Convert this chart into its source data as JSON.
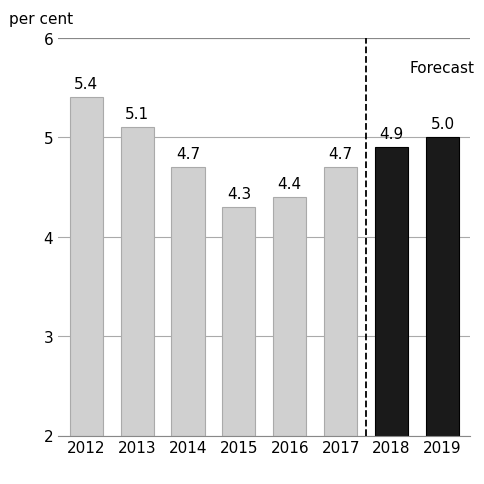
{
  "years": [
    "2012",
    "2013",
    "2014",
    "2015",
    "2016",
    "2017",
    "2018",
    "2019"
  ],
  "values": [
    5.4,
    5.1,
    4.7,
    4.3,
    4.4,
    4.7,
    4.9,
    5.0
  ],
  "bar_colors": [
    "#d0d0d0",
    "#d0d0d0",
    "#d0d0d0",
    "#d0d0d0",
    "#d0d0d0",
    "#d0d0d0",
    "#1a1a1a",
    "#1a1a1a"
  ],
  "bar_edgecolors": [
    "#aaaaaa",
    "#aaaaaa",
    "#aaaaaa",
    "#aaaaaa",
    "#aaaaaa",
    "#aaaaaa",
    "#000000",
    "#000000"
  ],
  "ylabel": "per cent",
  "ylim": [
    2,
    6
  ],
  "yticks": [
    2,
    3,
    4,
    5,
    6
  ],
  "forecast_label": "Forecast",
  "dashed_line_x": 5.5,
  "label_fontsize": 11,
  "tick_fontsize": 11,
  "ylabel_fontsize": 11,
  "forecast_fontsize": 11,
  "bar_width": 0.65,
  "background_color": "#ffffff",
  "grid_color": "#aaaaaa",
  "spine_color": "#888888"
}
